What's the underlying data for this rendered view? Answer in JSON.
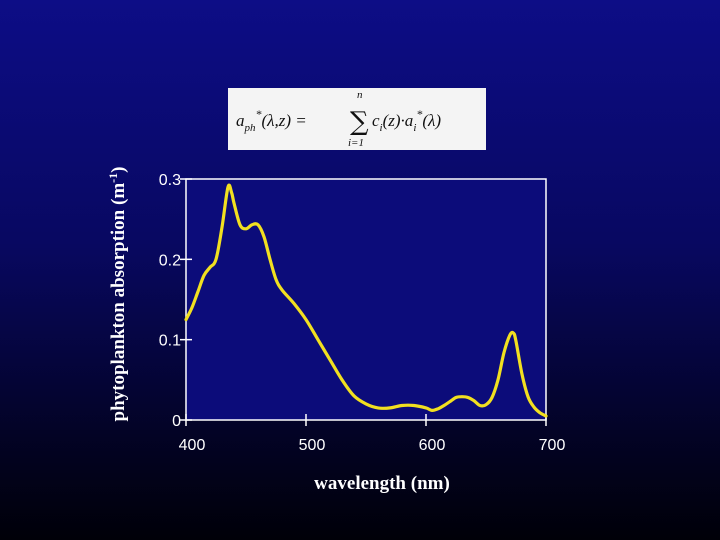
{
  "chart_data": {
    "type": "line",
    "title": "",
    "formula": {
      "lhs": "a",
      "lhs_sub": "ph",
      "lhs_sup": "*",
      "lhs_args": "(λ,z) =",
      "sum_top": "n",
      "sum_bottom": "i=1",
      "rhs": "c",
      "rhs_sub": "i",
      "rhs_mid": "(z)·a",
      "rhs_sub2": "i",
      "rhs_sup": "*",
      "rhs_end": "(λ)"
    },
    "xlabel": "wavelength (nm)",
    "ylabel": "phytoplankton absorption (m",
    "ylabel_sup": "-1",
    "ylabel_close": ")",
    "xlim": [
      400,
      700
    ],
    "ylim": [
      0,
      0.3
    ],
    "x_ticks": [
      "400",
      "500",
      "600",
      "700"
    ],
    "y_ticks": [
      "0",
      "0.1",
      "0.2",
      "0.3"
    ],
    "grid": false,
    "legend": "none",
    "line_color": "#f2e020",
    "plot_background": "#0c0c7a",
    "series": [
      {
        "x": [
          400,
          405,
          410,
          415,
          420,
          425,
          430,
          435,
          438,
          440,
          445,
          450,
          455,
          460,
          465,
          470,
          475,
          480,
          490,
          500,
          510,
          520,
          530,
          540,
          550,
          560,
          570,
          580,
          590,
          600,
          605,
          610,
          615,
          620,
          625,
          630,
          635,
          640,
          645,
          650,
          655,
          660,
          665,
          670,
          673,
          675,
          680,
          685,
          690,
          695,
          700
        ],
        "y": [
          0.125,
          0.14,
          0.16,
          0.18,
          0.19,
          0.2,
          0.24,
          0.29,
          0.283,
          0.27,
          0.243,
          0.238,
          0.243,
          0.243,
          0.228,
          0.2,
          0.175,
          0.162,
          0.145,
          0.125,
          0.1,
          0.075,
          0.05,
          0.03,
          0.02,
          0.015,
          0.015,
          0.018,
          0.018,
          0.015,
          0.012,
          0.014,
          0.018,
          0.023,
          0.028,
          0.029,
          0.028,
          0.024,
          0.018,
          0.019,
          0.028,
          0.05,
          0.084,
          0.106,
          0.108,
          0.098,
          0.057,
          0.029,
          0.016,
          0.009,
          0.005
        ]
      }
    ]
  }
}
